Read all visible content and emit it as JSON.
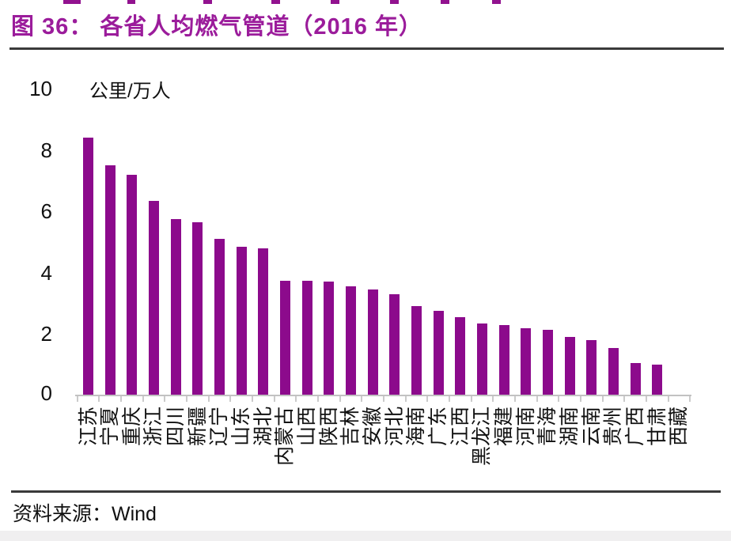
{
  "header": {
    "title": "图 36： 各省人均燃气管道（2016 年）"
  },
  "chart_data": {
    "type": "bar",
    "title": "各省人均燃气管道（2016 年）",
    "ylabel": "公里/万人",
    "xlabel": "",
    "categories": [
      "江苏",
      "宁夏",
      "重庆",
      "浙江",
      "四川",
      "新疆",
      "辽宁",
      "山东",
      "湖北",
      "内蒙古",
      "山西",
      "陕西",
      "吉林",
      "安徽",
      "河北",
      "海南",
      "广东",
      "江西",
      "黑龙江",
      "福建",
      "河南",
      "青海",
      "湖南",
      "云南",
      "贵州",
      "广西",
      "甘肃",
      "西藏"
    ],
    "values": [
      8.4,
      7.5,
      7.2,
      6.35,
      5.75,
      5.65,
      5.1,
      4.85,
      4.8,
      3.75,
      3.75,
      3.7,
      3.55,
      3.45,
      3.3,
      2.9,
      2.75,
      2.55,
      2.35,
      2.3,
      2.2,
      2.15,
      1.9,
      1.8,
      1.55,
      1.05,
      1.0,
      0
    ],
    "ylim": [
      0,
      10
    ],
    "yticks": [
      0,
      2,
      4,
      6,
      8,
      10
    ],
    "bar_color": "#8C0A8C",
    "grid": false,
    "legend_position": "none",
    "x_tick_label_rotation": -90
  },
  "footer": {
    "source_text": "资料来源：Wind"
  }
}
